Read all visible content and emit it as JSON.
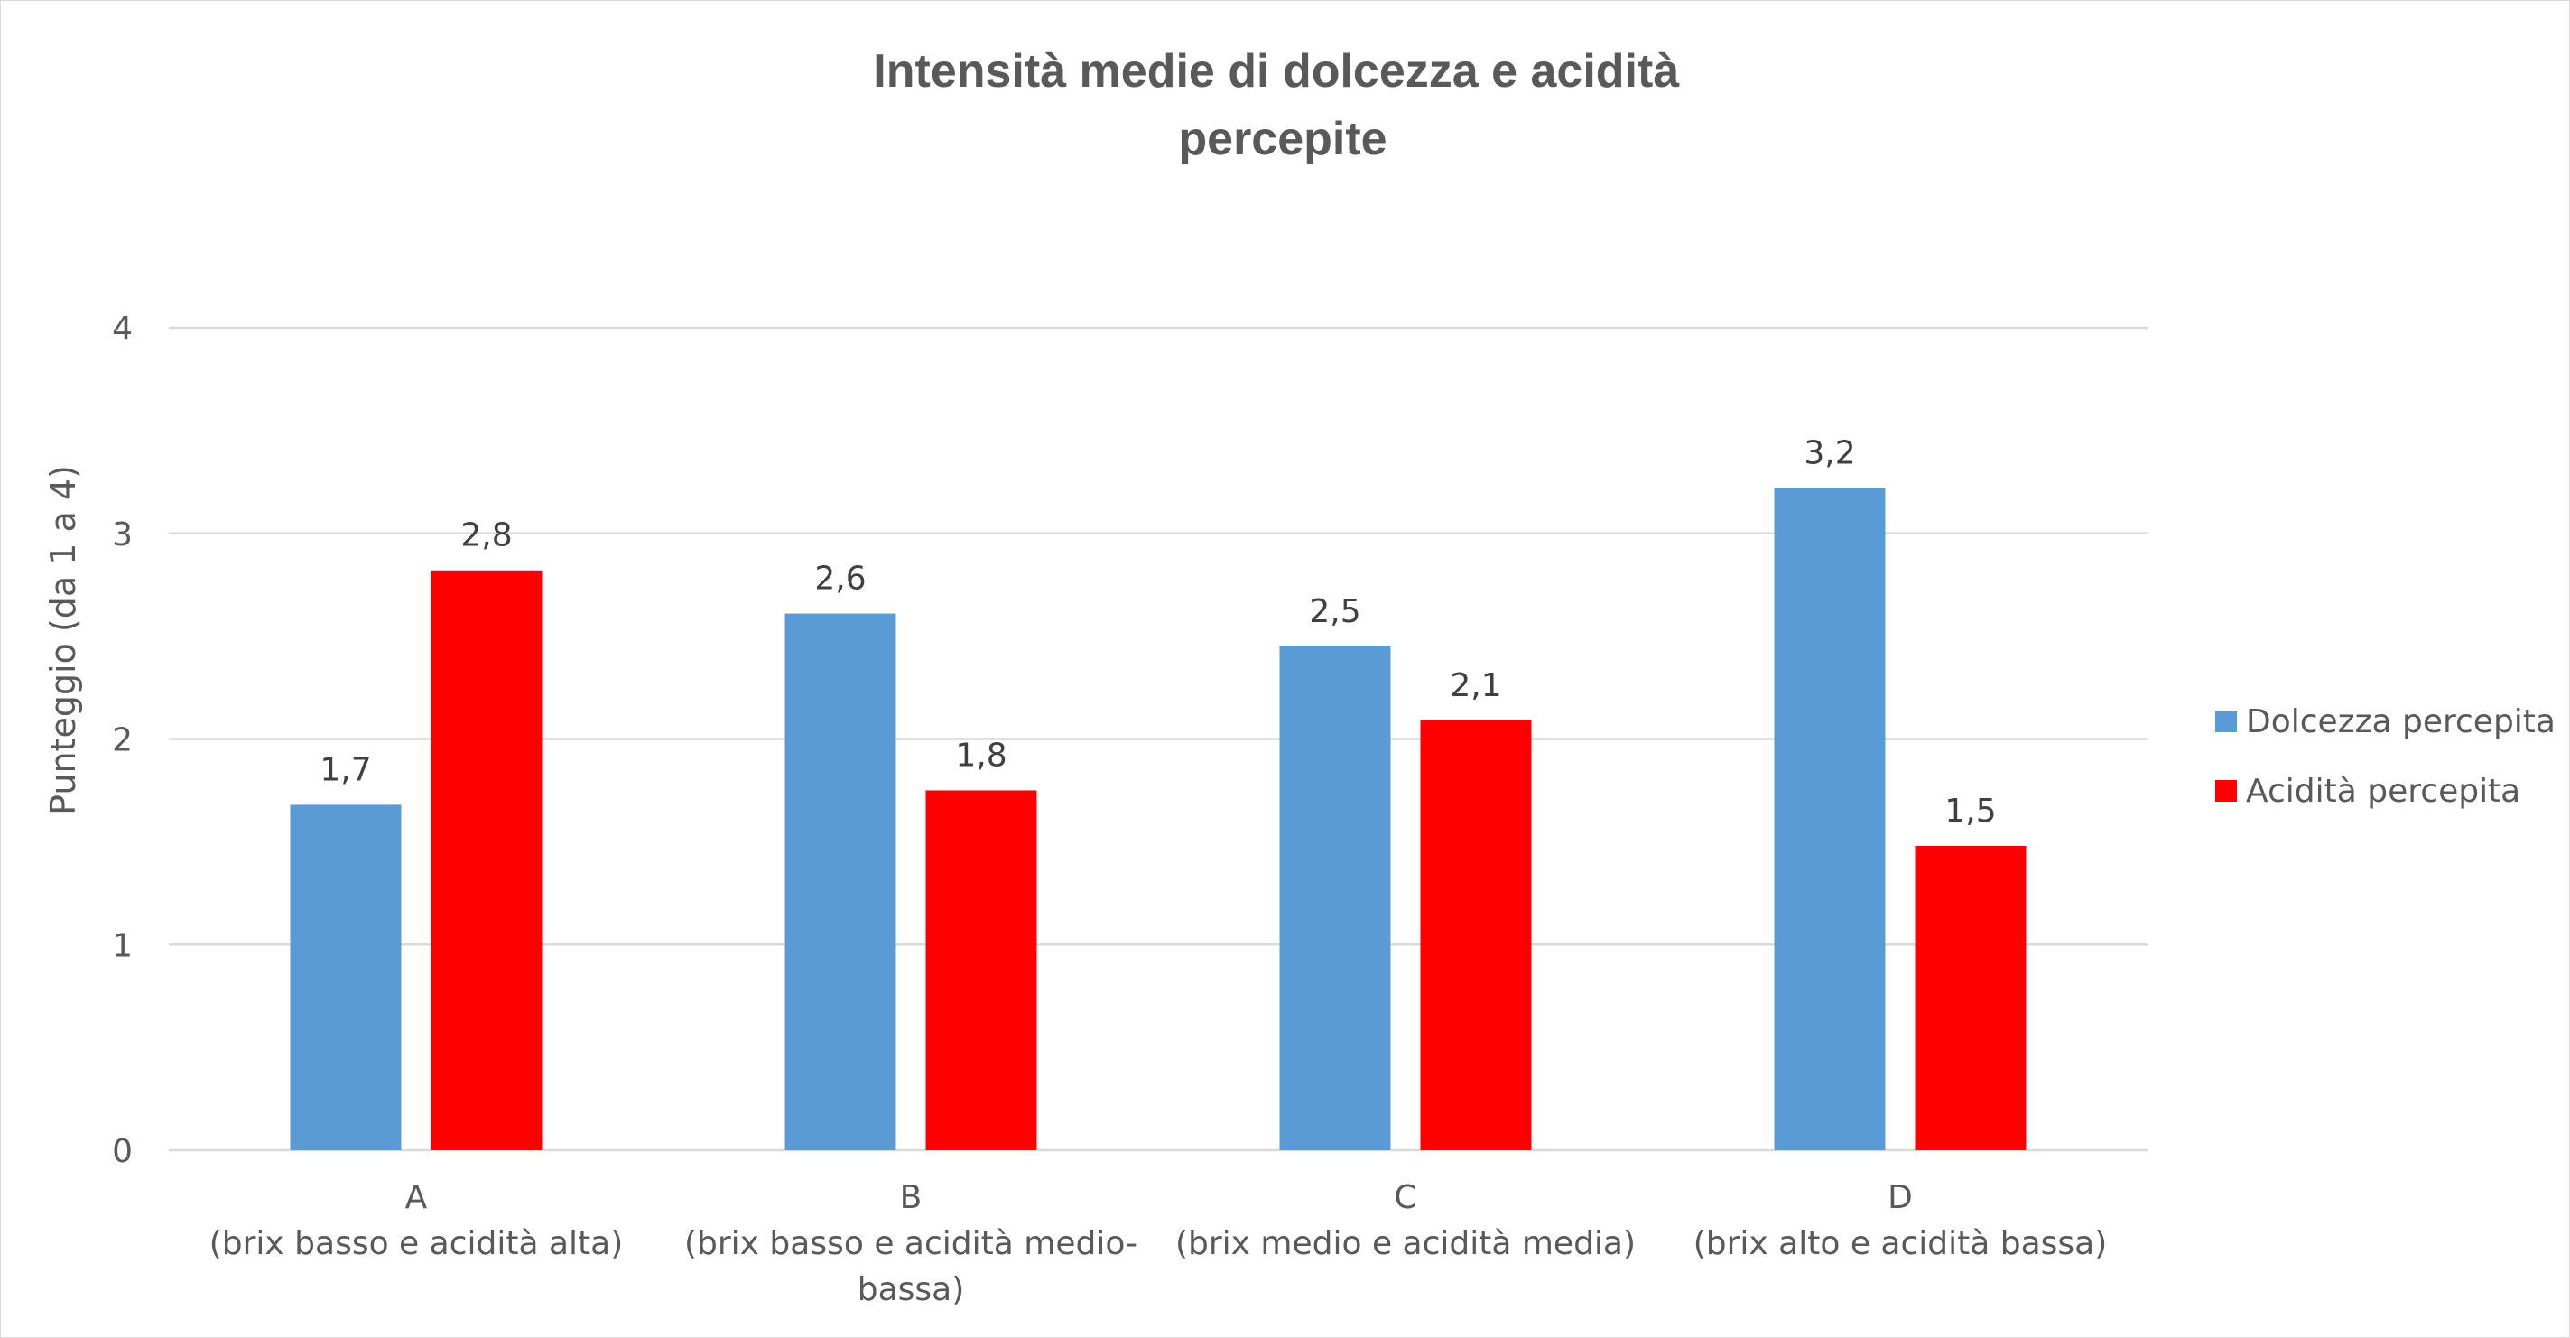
{
  "chart_data": {
    "type": "bar",
    "title": "Intensità medie di dolcezza e acidità percepite",
    "title_lines": [
      "Intensità medie di dolcezza e acidità",
      "percepite"
    ],
    "xlabel": "",
    "ylabel": "Punteggio (da 1 a 4)",
    "ylim": [
      0,
      4
    ],
    "yticks": [
      0,
      1,
      2,
      3,
      4
    ],
    "grid": true,
    "legend_position": "right",
    "categories": [
      "A (brix basso e acidità alta)",
      "B (brix basso e acidità medio-bassa)",
      "C (brix medio e acidità media)",
      "D (brix alto e acidità bassa)"
    ],
    "category_label_lines": [
      [
        "A",
        "(brix basso e acidità alta)"
      ],
      [
        "B",
        "(brix basso e acidità medio-",
        "bassa)"
      ],
      [
        "C",
        "(brix medio e acidità media)"
      ],
      [
        "D",
        "(brix alto e acidità bassa)"
      ]
    ],
    "series": [
      {
        "name": "Dolcezza percepita",
        "color": "#5b9bd5",
        "values": [
          1.68,
          2.61,
          2.45,
          3.22
        ],
        "labels": [
          "1,7",
          "2,6",
          "2,5",
          "3,2"
        ]
      },
      {
        "name": "Acidità percepita",
        "color": "#ff0000",
        "values": [
          2.82,
          1.75,
          2.09,
          1.48
        ],
        "labels": [
          "2,8",
          "1,8",
          "2,1",
          "1,5"
        ]
      }
    ]
  }
}
